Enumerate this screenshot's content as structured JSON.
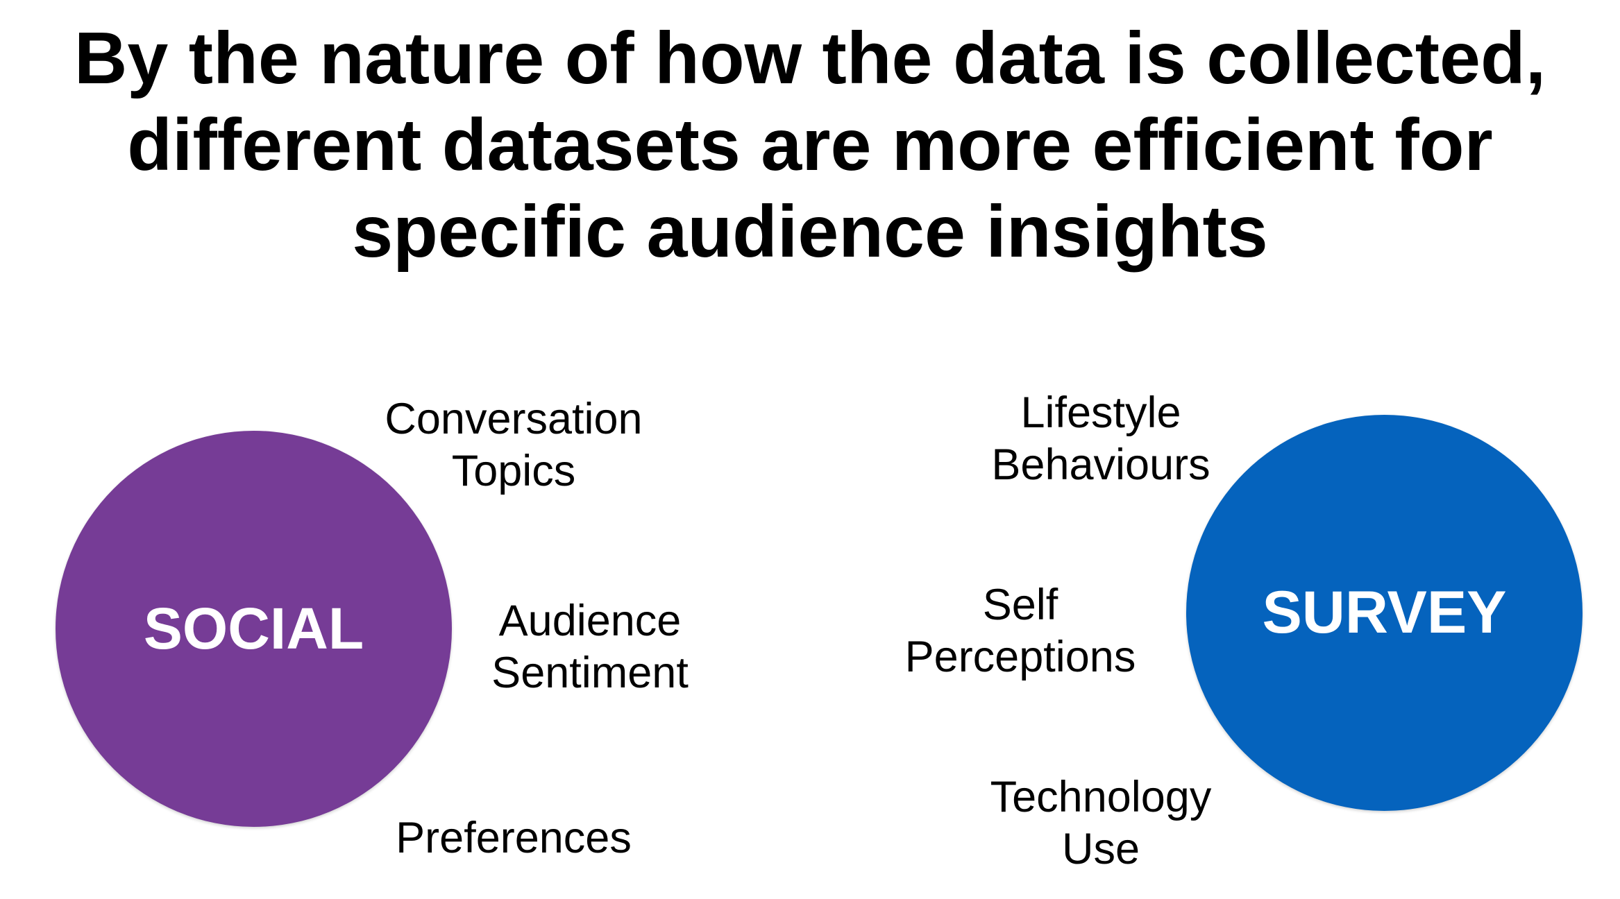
{
  "title": {
    "lines": [
      "By the nature of how the data is collected,",
      "different datasets are more efficient for",
      "specific audience insights"
    ]
  },
  "colors": {
    "social": "#763c96",
    "survey": "#0563bd",
    "text": "#000000",
    "circle_text": "#ffffff"
  },
  "social": {
    "label": "SOCIAL",
    "insights": [
      {
        "lines": [
          "Conversation",
          "Topics"
        ]
      },
      {
        "lines": [
          "Audience",
          "Sentiment"
        ]
      },
      {
        "lines": [
          "Preferences"
        ]
      }
    ]
  },
  "survey": {
    "label": "SURVEY",
    "insights": [
      {
        "lines": [
          "Lifestyle",
          "Behaviours"
        ]
      },
      {
        "lines": [
          "Self",
          "Perceptions"
        ]
      },
      {
        "lines": [
          "Technology",
          "Use"
        ]
      }
    ]
  }
}
